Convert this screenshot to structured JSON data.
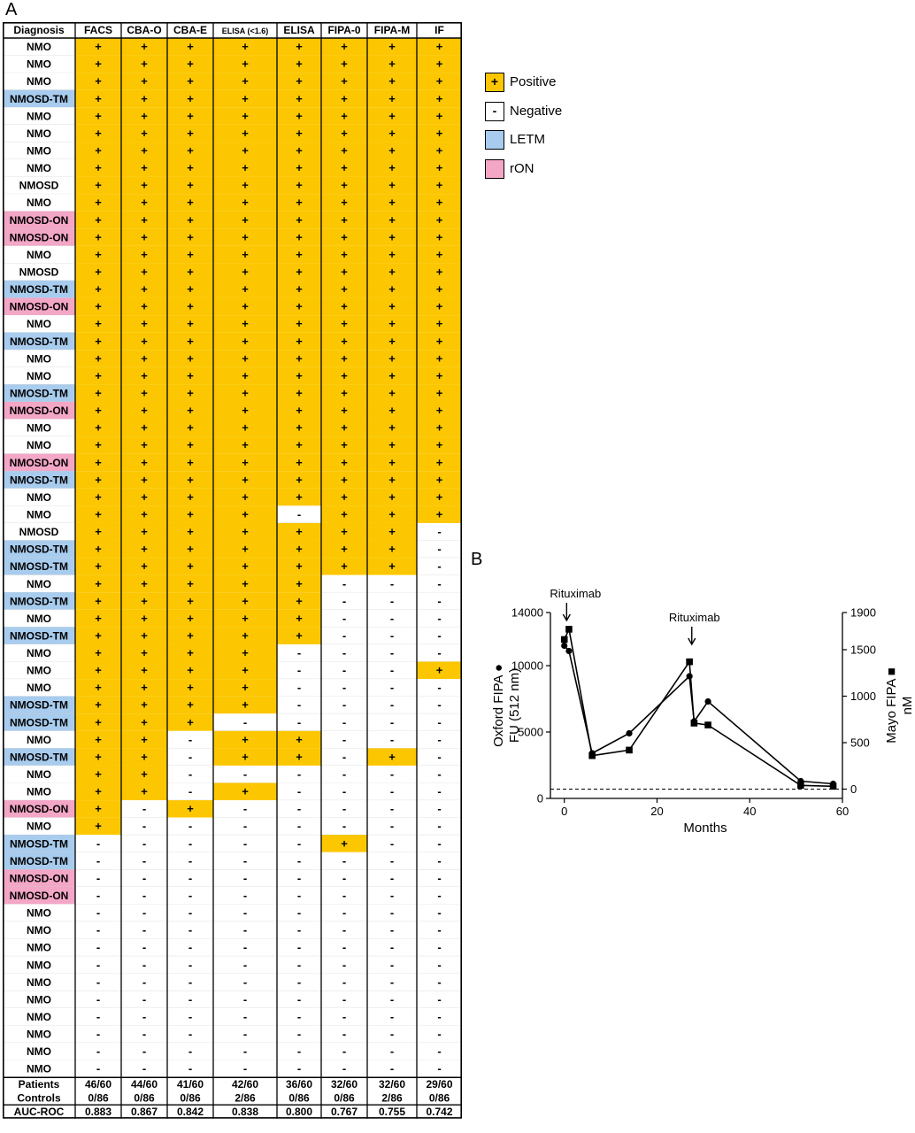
{
  "panel_a_label": "A",
  "panel_b_label": "B",
  "colors": {
    "positive": "#FCC700",
    "negative": "#FFFFFF",
    "letm": "#A8CCEE",
    "ron": "#F3A6C6",
    "grid": "#D0D0D0"
  },
  "legend": [
    {
      "symbol": "+",
      "label": "Positive",
      "color": "#FCC700"
    },
    {
      "symbol": "-",
      "label": "Negative",
      "color": "#FFFFFF"
    },
    {
      "symbol": "",
      "label": "LETM",
      "color": "#A8CCEE"
    },
    {
      "symbol": "",
      "label": "rON",
      "color": "#F3A6C6"
    }
  ],
  "table": {
    "headers": [
      "Diagnosis",
      "FACS",
      "CBA-O",
      "CBA-E",
      "ELISA (<1.6)",
      "ELISA",
      "FIPA-0",
      "FIPA-M",
      "IF"
    ],
    "rows": [
      {
        "d": "NMO",
        "c": "",
        "v": "++++++++"
      },
      {
        "d": "NMO",
        "c": "",
        "v": "++++++++"
      },
      {
        "d": "NMO",
        "c": "",
        "v": "++++++++"
      },
      {
        "d": "NMOSD-TM",
        "c": "letm",
        "v": "++++++++"
      },
      {
        "d": "NMO",
        "c": "",
        "v": "++++++++"
      },
      {
        "d": "NMO",
        "c": "",
        "v": "++++++++"
      },
      {
        "d": "NMO",
        "c": "",
        "v": "++++++++"
      },
      {
        "d": "NMO",
        "c": "",
        "v": "++++++++"
      },
      {
        "d": "NMOSD",
        "c": "",
        "v": "++++++++"
      },
      {
        "d": "NMO",
        "c": "",
        "v": "++++++++"
      },
      {
        "d": "NMOSD-ON",
        "c": "ron",
        "v": "++++++++"
      },
      {
        "d": "NMOSD-ON",
        "c": "ron",
        "v": "++++++++"
      },
      {
        "d": "NMO",
        "c": "",
        "v": "++++++++"
      },
      {
        "d": "NMOSD",
        "c": "",
        "v": "++++++++"
      },
      {
        "d": "NMOSD-TM",
        "c": "letm",
        "v": "++++++++"
      },
      {
        "d": "NMOSD-ON",
        "c": "ron",
        "v": "++++++++"
      },
      {
        "d": "NMO",
        "c": "",
        "v": "++++++++"
      },
      {
        "d": "NMOSD-TM",
        "c": "letm",
        "v": "++++++++"
      },
      {
        "d": "NMO",
        "c": "",
        "v": "++++++++"
      },
      {
        "d": "NMO",
        "c": "",
        "v": "++++++++"
      },
      {
        "d": "NMOSD-TM",
        "c": "letm",
        "v": "++++++++"
      },
      {
        "d": "NMOSD-ON",
        "c": "ron",
        "v": "++++++++"
      },
      {
        "d": "NMO",
        "c": "",
        "v": "++++++++"
      },
      {
        "d": "NMO",
        "c": "",
        "v": "++++++++"
      },
      {
        "d": "NMOSD-ON",
        "c": "ron",
        "v": "++++++++"
      },
      {
        "d": "NMOSD-TM",
        "c": "letm",
        "v": "++++++++"
      },
      {
        "d": "NMO",
        "c": "",
        "v": "++++++++"
      },
      {
        "d": "NMO",
        "c": "",
        "v": "++++-+++"
      },
      {
        "d": "NMOSD",
        "c": "",
        "v": "+++++++-"
      },
      {
        "d": "NMOSD-TM",
        "c": "letm",
        "v": "+++++++-"
      },
      {
        "d": "NMOSD-TM",
        "c": "letm",
        "v": "+++++++-"
      },
      {
        "d": "NMO",
        "c": "",
        "v": "+++++---"
      },
      {
        "d": "NMOSD-TM",
        "c": "letm",
        "v": "+++++---"
      },
      {
        "d": "NMO",
        "c": "",
        "v": "+++++---"
      },
      {
        "d": "NMOSD-TM",
        "c": "letm",
        "v": "+++++---"
      },
      {
        "d": "NMO",
        "c": "",
        "v": "++++----"
      },
      {
        "d": "NMO",
        "c": "",
        "v": "++++---+"
      },
      {
        "d": "NMO",
        "c": "",
        "v": "++++----"
      },
      {
        "d": "NMOSD-TM",
        "c": "letm",
        "v": "++++----"
      },
      {
        "d": "NMOSD-TM",
        "c": "letm",
        "v": "+++-----"
      },
      {
        "d": "NMO",
        "c": "",
        "v": "++-++---"
      },
      {
        "d": "NMOSD-TM",
        "c": "letm",
        "v": "++-++-+-"
      },
      {
        "d": "NMO",
        "c": "",
        "v": "++------"
      },
      {
        "d": "NMO",
        "c": "",
        "v": "++-+----"
      },
      {
        "d": "NMOSD-ON",
        "c": "ron",
        "v": "+-+-----"
      },
      {
        "d": "NMO",
        "c": "",
        "v": "+-------"
      },
      {
        "d": "NMOSD-TM",
        "c": "letm",
        "v": "-----+--"
      },
      {
        "d": "NMOSD-TM",
        "c": "letm",
        "v": "--------"
      },
      {
        "d": "NMOSD-ON",
        "c": "ron",
        "v": "--------"
      },
      {
        "d": "NMOSD-ON",
        "c": "ron",
        "v": "--------"
      },
      {
        "d": "NMO",
        "c": "",
        "v": "--------"
      },
      {
        "d": "NMO",
        "c": "",
        "v": "--------"
      },
      {
        "d": "NMO",
        "c": "",
        "v": "--------"
      },
      {
        "d": "NMO",
        "c": "",
        "v": "--------"
      },
      {
        "d": "NMO",
        "c": "",
        "v": "--------"
      },
      {
        "d": "NMO",
        "c": "",
        "v": "--------"
      },
      {
        "d": "NMO",
        "c": "",
        "v": "--------"
      },
      {
        "d": "NMO",
        "c": "",
        "v": "--------"
      },
      {
        "d": "NMO",
        "c": "",
        "v": "--------"
      },
      {
        "d": "NMO",
        "c": "",
        "v": "--------"
      }
    ],
    "summary": [
      {
        "label": "Patients",
        "values": [
          "46/60",
          "44/60",
          "41/60",
          "42/60",
          "36/60",
          "32/60",
          "32/60",
          "29/60"
        ]
      },
      {
        "label": "Controls",
        "values": [
          "0/86",
          "0/86",
          "0/86",
          "2/86",
          "0/86",
          "0/86",
          "2/86",
          "0/86"
        ]
      },
      {
        "label": "AUC-ROC",
        "values": [
          "0.883",
          "0.867",
          "0.842",
          "0.838",
          "0.800",
          "0.767",
          "0.755",
          "0.742"
        ]
      }
    ]
  },
  "chart_data": {
    "type": "line",
    "xlabel": "Months",
    "ylabel_left": "Oxford FIPA ●\nFU (512 nm)",
    "ylabel_right": "Mayo FIPA ■\nnM",
    "xlim": [
      -3,
      60
    ],
    "xticks": [
      0,
      20,
      40,
      60
    ],
    "ylim_left": [
      0,
      14000
    ],
    "yticks_left": [
      0,
      5000,
      10000,
      14000
    ],
    "ylim_right": [
      -100,
      1900
    ],
    "yticks_right": [
      0,
      500,
      1000,
      1500,
      1900
    ],
    "series": [
      {
        "marker": "circle",
        "axis": "left",
        "x": [
          0,
          1,
          6,
          14,
          27,
          28,
          31,
          51,
          58
        ],
        "y": [
          11500,
          11100,
          3400,
          4900,
          9200,
          5800,
          7300,
          1300,
          1100
        ]
      },
      {
        "marker": "square",
        "axis": "right",
        "x": [
          0,
          1,
          6,
          14,
          27,
          28,
          31,
          51,
          58
        ],
        "y": [
          1610,
          1720,
          360,
          420,
          1370,
          710,
          690,
          40,
          30
        ]
      }
    ],
    "threshold_right": 0,
    "annotations": [
      {
        "text": "Rituximab",
        "x": 0.5
      },
      {
        "text": "Rituximab",
        "x": 27.5
      }
    ]
  }
}
